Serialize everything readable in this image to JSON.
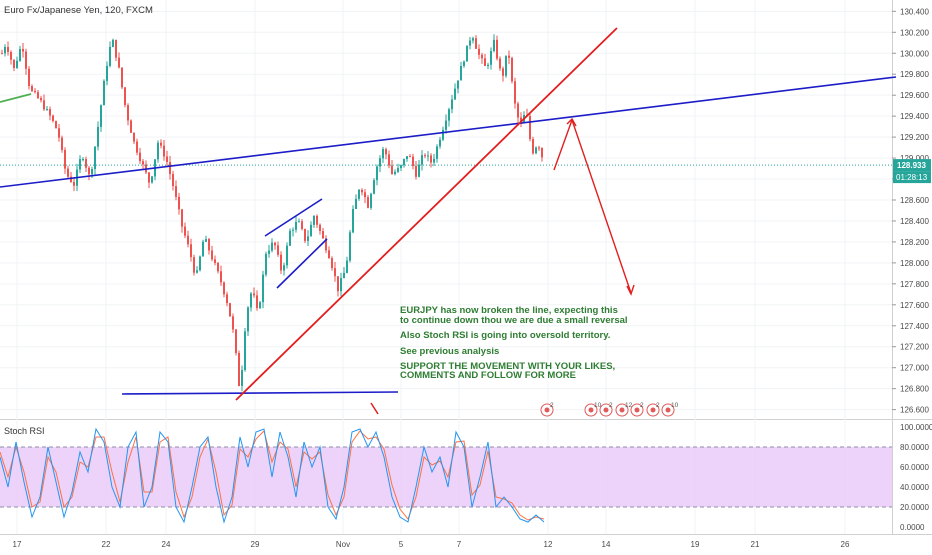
{
  "chart_data": {
    "type": "candlestick",
    "title": "Euro Fx/Japanese Yen, 120, FXCM",
    "price_axis": {
      "ticks": [
        "130.400",
        "130.200",
        "130.000",
        "129.800",
        "129.600",
        "129.400",
        "129.200",
        "129.000",
        "128.800",
        "128.600",
        "128.400",
        "128.200",
        "128.000",
        "127.800",
        "127.600",
        "127.400",
        "127.200",
        "127.000",
        "126.800",
        "126.600"
      ],
      "range": [
        126.52,
        130.47
      ]
    },
    "time_axis": {
      "ticks": [
        "17",
        "22",
        "24",
        "29",
        "Nov",
        "5",
        "7",
        "12",
        "14",
        "19",
        "21",
        "26"
      ]
    },
    "last_price": "128.933",
    "countdown": "01:28:13",
    "price_path": [
      [
        0,
        129.95
      ],
      [
        6,
        130.1
      ],
      [
        14,
        129.85
      ],
      [
        22,
        130.1
      ],
      [
        30,
        129.65
      ],
      [
        40,
        129.55
      ],
      [
        50,
        129.4
      ],
      [
        58,
        129.25
      ],
      [
        66,
        128.85
      ],
      [
        74,
        128.75
      ],
      [
        82,
        129.05
      ],
      [
        90,
        128.8
      ],
      [
        98,
        129.3
      ],
      [
        106,
        129.85
      ],
      [
        112,
        130.15
      ],
      [
        118,
        129.9
      ],
      [
        126,
        129.45
      ],
      [
        134,
        129.15
      ],
      [
        142,
        128.95
      ],
      [
        150,
        128.75
      ],
      [
        158,
        129.15
      ],
      [
        166,
        129.0
      ],
      [
        174,
        128.7
      ],
      [
        182,
        128.35
      ],
      [
        190,
        128.1
      ],
      [
        196,
        127.85
      ],
      [
        204,
        128.25
      ],
      [
        212,
        128.05
      ],
      [
        220,
        127.85
      ],
      [
        228,
        127.6
      ],
      [
        234,
        127.3
      ],
      [
        240,
        126.75
      ],
      [
        246,
        127.5
      ],
      [
        252,
        127.75
      ],
      [
        258,
        127.5
      ],
      [
        266,
        128.1
      ],
      [
        274,
        128.2
      ],
      [
        282,
        127.9
      ],
      [
        290,
        128.3
      ],
      [
        298,
        128.4
      ],
      [
        306,
        128.2
      ],
      [
        314,
        128.45
      ],
      [
        322,
        128.25
      ],
      [
        330,
        128.05
      ],
      [
        338,
        127.75
      ],
      [
        346,
        127.95
      ],
      [
        352,
        128.45
      ],
      [
        360,
        128.75
      ],
      [
        368,
        128.55
      ],
      [
        376,
        128.9
      ],
      [
        384,
        129.1
      ],
      [
        392,
        128.85
      ],
      [
        400,
        128.9
      ],
      [
        408,
        129.05
      ],
      [
        416,
        128.85
      ],
      [
        424,
        129.05
      ],
      [
        432,
        128.95
      ],
      [
        440,
        129.2
      ],
      [
        448,
        129.45
      ],
      [
        456,
        129.7
      ],
      [
        464,
        129.95
      ],
      [
        472,
        130.2
      ],
      [
        478,
        130.0
      ],
      [
        486,
        129.85
      ],
      [
        494,
        130.1
      ],
      [
        502,
        129.75
      ],
      [
        508,
        130.05
      ],
      [
        514,
        129.55
      ],
      [
        520,
        129.3
      ],
      [
        526,
        129.45
      ],
      [
        532,
        129.05
      ],
      [
        538,
        129.15
      ],
      [
        544,
        128.95
      ]
    ],
    "stoch_rsi": {
      "label": "Stoch RSI",
      "ticks": [
        "100.0000",
        "80.0000",
        "60.0000",
        "40.0000",
        "20.0000",
        "0.0000"
      ],
      "k": [
        [
          0,
          70
        ],
        [
          8,
          40
        ],
        [
          16,
          85
        ],
        [
          24,
          45
        ],
        [
          32,
          10
        ],
        [
          40,
          30
        ],
        [
          48,
          80
        ],
        [
          56,
          45
        ],
        [
          64,
          10
        ],
        [
          72,
          35
        ],
        [
          80,
          75
        ],
        [
          88,
          55
        ],
        [
          96,
          98
        ],
        [
          104,
          85
        ],
        [
          112,
          40
        ],
        [
          120,
          20
        ],
        [
          128,
          80
        ],
        [
          136,
          95
        ],
        [
          144,
          20
        ],
        [
          152,
          40
        ],
        [
          160,
          95
        ],
        [
          168,
          85
        ],
        [
          176,
          20
        ],
        [
          184,
          5
        ],
        [
          192,
          40
        ],
        [
          200,
          80
        ],
        [
          208,
          90
        ],
        [
          216,
          40
        ],
        [
          224,
          5
        ],
        [
          232,
          30
        ],
        [
          240,
          90
        ],
        [
          248,
          60
        ],
        [
          256,
          95
        ],
        [
          264,
          98
        ],
        [
          272,
          50
        ],
        [
          280,
          95
        ],
        [
          288,
          70
        ],
        [
          296,
          30
        ],
        [
          304,
          85
        ],
        [
          312,
          60
        ],
        [
          320,
          80
        ],
        [
          328,
          20
        ],
        [
          336,
          8
        ],
        [
          344,
          40
        ],
        [
          352,
          95
        ],
        [
          360,
          98
        ],
        [
          368,
          80
        ],
        [
          376,
          95
        ],
        [
          384,
          70
        ],
        [
          392,
          30
        ],
        [
          400,
          10
        ],
        [
          408,
          5
        ],
        [
          416,
          40
        ],
        [
          424,
          80
        ],
        [
          432,
          55
        ],
        [
          440,
          70
        ],
        [
          448,
          40
        ],
        [
          456,
          95
        ],
        [
          464,
          80
        ],
        [
          472,
          20
        ],
        [
          480,
          50
        ],
        [
          488,
          85
        ],
        [
          496,
          20
        ],
        [
          504,
          30
        ],
        [
          512,
          20
        ],
        [
          520,
          8
        ],
        [
          528,
          5
        ],
        [
          536,
          12
        ],
        [
          544,
          5
        ]
      ],
      "d": [
        [
          0,
          75
        ],
        [
          8,
          50
        ],
        [
          16,
          80
        ],
        [
          24,
          55
        ],
        [
          32,
          20
        ],
        [
          40,
          25
        ],
        [
          48,
          70
        ],
        [
          56,
          55
        ],
        [
          64,
          20
        ],
        [
          72,
          30
        ],
        [
          80,
          65
        ],
        [
          88,
          60
        ],
        [
          96,
          90
        ],
        [
          104,
          90
        ],
        [
          112,
          55
        ],
        [
          120,
          25
        ],
        [
          128,
          65
        ],
        [
          136,
          90
        ],
        [
          144,
          35
        ],
        [
          152,
          35
        ],
        [
          160,
          85
        ],
        [
          168,
          90
        ],
        [
          176,
          35
        ],
        [
          184,
          10
        ],
        [
          192,
          30
        ],
        [
          200,
          70
        ],
        [
          208,
          88
        ],
        [
          216,
          55
        ],
        [
          224,
          12
        ],
        [
          232,
          22
        ],
        [
          240,
          78
        ],
        [
          248,
          70
        ],
        [
          256,
          88
        ],
        [
          264,
          96
        ],
        [
          272,
          65
        ],
        [
          280,
          85
        ],
        [
          288,
          78
        ],
        [
          296,
          40
        ],
        [
          304,
          75
        ],
        [
          312,
          68
        ],
        [
          320,
          75
        ],
        [
          328,
          32
        ],
        [
          336,
          12
        ],
        [
          344,
          30
        ],
        [
          352,
          85
        ],
        [
          360,
          96
        ],
        [
          368,
          88
        ],
        [
          376,
          90
        ],
        [
          384,
          78
        ],
        [
          392,
          42
        ],
        [
          400,
          18
        ],
        [
          408,
          8
        ],
        [
          416,
          30
        ],
        [
          424,
          70
        ],
        [
          432,
          62
        ],
        [
          440,
          66
        ],
        [
          448,
          50
        ],
        [
          456,
          85
        ],
        [
          464,
          86
        ],
        [
          472,
          32
        ],
        [
          480,
          42
        ],
        [
          488,
          76
        ],
        [
          496,
          30
        ],
        [
          504,
          28
        ],
        [
          512,
          24
        ],
        [
          520,
          12
        ],
        [
          528,
          7
        ],
        [
          536,
          10
        ],
        [
          544,
          8
        ]
      ]
    },
    "note": {
      "line1": "EURJPY has now broken the line, expecting this",
      "line2": "to continue down thou we are due a small reversal",
      "line3": "Also Stoch RSI is going into oversold territory.",
      "line4": "See previous analysis",
      "line5": "SUPPORT THE MOVEMENT WITH YOUR LIKES,",
      "line6": "COMMENTS AND FOLLOW FOR MORE"
    },
    "event_markers": [
      {
        "count": "2"
      },
      {
        "count": "10"
      },
      {
        "count": "2"
      },
      {
        "count": "12"
      },
      {
        "count": "2"
      },
      {
        "count": "2"
      },
      {
        "count": "10"
      }
    ],
    "colors": {
      "up": "#26a69a",
      "down": "#ef5350",
      "trendline_blue": "#1c1cc8",
      "trendline_red": "#e31e1e",
      "green_line": "#4caf50",
      "last_price": "#26a69a",
      "stoch_k": "#2196f3",
      "stoch_d": "#ff7043",
      "stoch_band": "#e9c8f7"
    }
  }
}
